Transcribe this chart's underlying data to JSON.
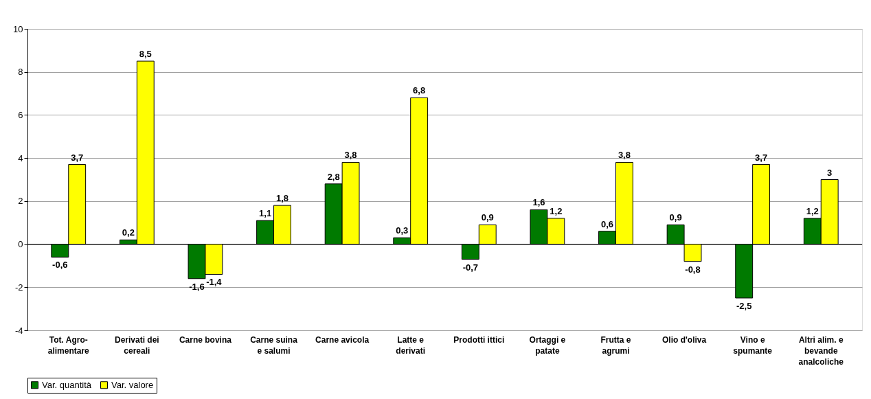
{
  "chart_data": {
    "type": "bar",
    "categories": [
      "Tot. Agro-\nalimentare",
      "Derivati dei\ncereali",
      "Carne bovina",
      "Carne suina\ne salumi",
      "Carne avicola",
      "Latte e\nderivati",
      "Prodotti ittici",
      "Ortaggi e\npatate",
      "Frutta e\nagrumi",
      "Olio d'oliva",
      "Vino e\nspumante",
      "Altri alim. e\nbevande\nanalcoliche"
    ],
    "series": [
      {
        "name": "Var. quantità",
        "color": "#007a00",
        "values": [
          -0.6,
          0.2,
          -1.6,
          1.1,
          2.8,
          0.3,
          -0.7,
          1.6,
          0.6,
          0.9,
          -2.5,
          1.2
        ],
        "value_labels": [
          "-0,6",
          "0,2",
          "-1,6",
          "1,1",
          "2,8",
          "0,3",
          "-0,7",
          "1,6",
          "0,6",
          "0,9",
          "-2,5",
          "1,2"
        ]
      },
      {
        "name": "Var. valore",
        "color": "#ffff00",
        "values": [
          3.7,
          8.5,
          -1.4,
          1.8,
          3.8,
          6.8,
          0.9,
          1.2,
          3.8,
          -0.8,
          3.7,
          3
        ],
        "value_labels": [
          "3,7",
          "8,5",
          "-1,4",
          "1,8",
          "3,8",
          "6,8",
          "0,9",
          "1,2",
          "3,8",
          "-0,8",
          "3,7",
          "3"
        ]
      }
    ],
    "ylim": [
      -4,
      10
    ],
    "yticks": [
      -4,
      -2,
      0,
      2,
      4,
      6,
      8,
      10
    ],
    "grid": "y",
    "legend": "bottom"
  }
}
